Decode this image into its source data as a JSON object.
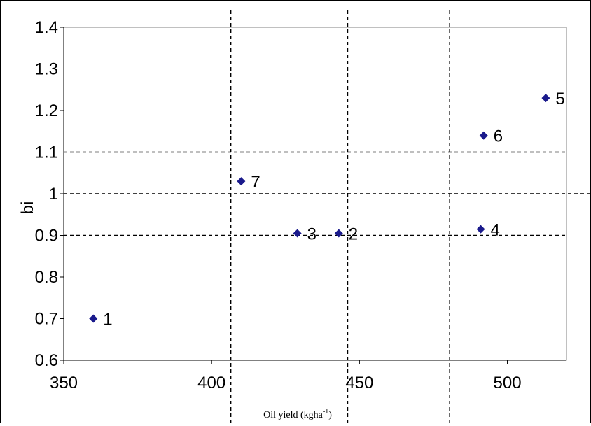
{
  "chart_data": {
    "type": "scatter",
    "title": "",
    "xlabel": "Oil yield (kgha",
    "xlabel_sup": "-1",
    "xlabel_end": ")",
    "ylabel": "bi",
    "xlim": [
      350,
      520
    ],
    "ylim": [
      0.6,
      1.4
    ],
    "x_ticks": [
      350,
      400,
      450,
      500
    ],
    "x_tick_labels": [
      "350",
      "400",
      "450",
      "500"
    ],
    "y_ticks": [
      0.6,
      0.7,
      0.8,
      0.9,
      1.0,
      1.1,
      1.2,
      1.3,
      1.4
    ],
    "y_tick_labels": [
      "0.6",
      "0.7",
      "0.8",
      "0.9",
      "1",
      "1.1",
      "1.2",
      "1.3",
      "1.4"
    ],
    "grid": false,
    "marker": "diamond",
    "marker_color": "#1a1a8c",
    "points": [
      {
        "label": "1",
        "x": 360,
        "y": 0.7
      },
      {
        "label": "2",
        "x": 443,
        "y": 0.905
      },
      {
        "label": "3",
        "x": 429,
        "y": 0.905
      },
      {
        "label": "4",
        "x": 491,
        "y": 0.915
      },
      {
        "label": "5",
        "x": 513,
        "y": 1.23
      },
      {
        "label": "6",
        "x": 492,
        "y": 1.14
      },
      {
        "label": "7",
        "x": 410,
        "y": 1.03
      }
    ],
    "reference_lines": {
      "vertical_x": [
        406.5,
        446,
        480.5
      ],
      "horizontal_y": [
        0.9,
        1.0,
        1.1
      ],
      "style": "dashed"
    }
  }
}
